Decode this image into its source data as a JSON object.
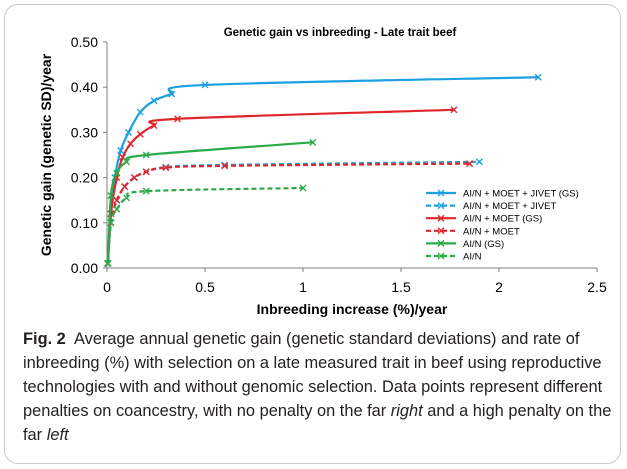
{
  "chart_data": {
    "type": "line",
    "title": "Genetic gain vs inbreeding  -  Late trait beef",
    "xlabel": "Inbreeding increase (%)/year",
    "ylabel": "Genetic gain (genetic SD)/year",
    "xlim": [
      0,
      2.5
    ],
    "ylim": [
      0,
      0.5
    ],
    "x_ticks": [
      0,
      0.5,
      1,
      1.5,
      2,
      2.5
    ],
    "x_tick_labels": [
      "0",
      "0.5",
      "1",
      "1.5",
      "2",
      "2.5"
    ],
    "y_ticks": [
      0,
      0.1,
      0.2,
      0.3,
      0.4,
      0.5
    ],
    "y_tick_labels": [
      "0.00",
      "0.10",
      "0.20",
      "0.30",
      "0.40",
      "0.50"
    ],
    "grid": false,
    "legend_position": "right",
    "series": [
      {
        "name": "AI/N + MOET + JIVET (GS)",
        "color": "#1ba1e2",
        "dashed": false,
        "x": [
          0.005,
          0.02,
          0.04,
          0.07,
          0.11,
          0.17,
          0.24,
          0.33,
          0.5,
          2.2
        ],
        "y": [
          0.01,
          0.12,
          0.2,
          0.26,
          0.3,
          0.345,
          0.37,
          0.385,
          0.405,
          0.422
        ]
      },
      {
        "name": "AI/N + MOET + JIVET",
        "color": "#1ba1e2",
        "dashed": true,
        "x": [
          0.003,
          0.02,
          0.05,
          0.09,
          0.14,
          0.2,
          0.3,
          0.6,
          1.9
        ],
        "y": [
          0.01,
          0.1,
          0.15,
          0.18,
          0.2,
          0.213,
          0.223,
          0.228,
          0.235
        ]
      },
      {
        "name": "AI/N + MOET (GS)",
        "color": "#e0262d",
        "dashed": false,
        "x": [
          0.005,
          0.02,
          0.05,
          0.08,
          0.12,
          0.17,
          0.24,
          0.36,
          1.77
        ],
        "y": [
          0.01,
          0.12,
          0.2,
          0.245,
          0.275,
          0.296,
          0.315,
          0.33,
          0.35
        ]
      },
      {
        "name": "AI/N + MOET",
        "color": "#e0262d",
        "dashed": true,
        "x": [
          0.003,
          0.02,
          0.05,
          0.09,
          0.14,
          0.2,
          0.3,
          0.6,
          1.85
        ],
        "y": [
          0.01,
          0.1,
          0.15,
          0.18,
          0.2,
          0.213,
          0.222,
          0.226,
          0.231
        ]
      },
      {
        "name": "AI/N (GS)",
        "color": "#2aab48",
        "dashed": false,
        "x": [
          0.005,
          0.02,
          0.05,
          0.1,
          0.2,
          1.05
        ],
        "y": [
          0.01,
          0.16,
          0.21,
          0.235,
          0.25,
          0.278
        ]
      },
      {
        "name": "AI/N",
        "color": "#2aab48",
        "dashed": true,
        "x": [
          0.003,
          0.02,
          0.05,
          0.1,
          0.2,
          1.0
        ],
        "y": [
          0.01,
          0.1,
          0.13,
          0.155,
          0.17,
          0.177
        ]
      }
    ]
  },
  "caption": {
    "label": "Fig. 2",
    "text_main": "Average annual genetic gain (genetic standard deviations) and rate of inbreeding (%) with selection on a late measured trait in beef using reproductive technologies with and without genomic selection. Data points represent different penalties on coancestry, with no penalty on the far ",
    "right_word": "right",
    "text_mid": " and a high penalty on the far ",
    "left_word": "left"
  }
}
